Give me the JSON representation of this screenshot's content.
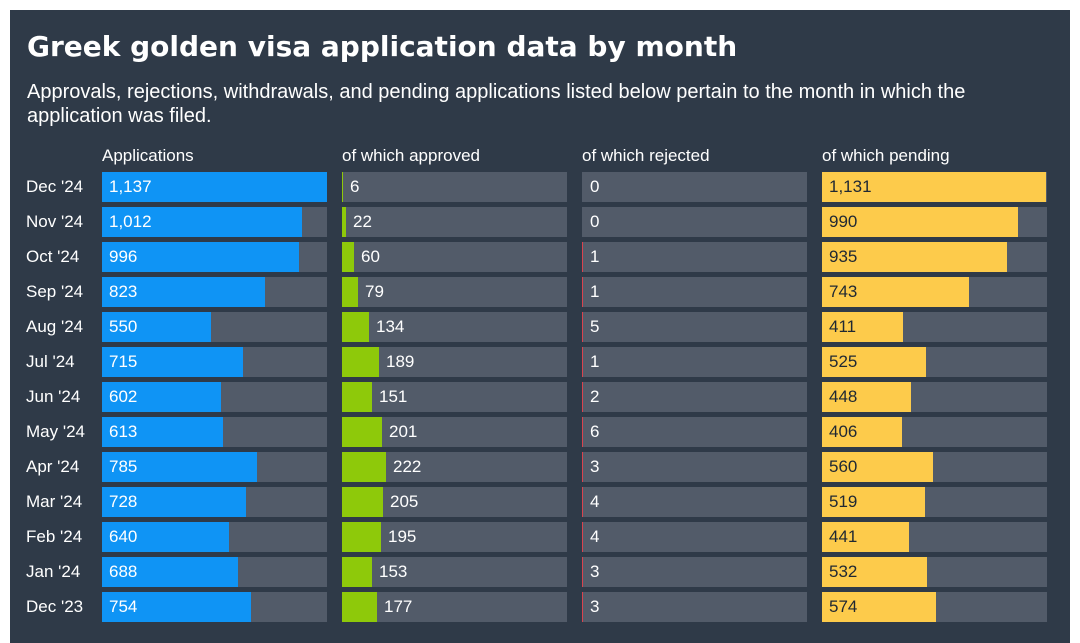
{
  "title": "Greek golden visa application data by month",
  "subtitle": "Approvals, rejections, withdrawals, and pending applications listed below pertain to the month in which the application was filed.",
  "columns": [
    {
      "key": "applications",
      "label": "Applications",
      "color": "#0f94f5",
      "max": 1137
    },
    {
      "key": "approved",
      "label": "of which approved",
      "color": "#8ec90a",
      "max": 1137
    },
    {
      "key": "rejected",
      "label": "of which rejected",
      "color": "#d8434f",
      "max": 1137
    },
    {
      "key": "pending",
      "label": "of which pending",
      "color": "#fdcb4b",
      "max": 1137
    }
  ],
  "chart_data": {
    "type": "bar",
    "orientation": "horizontal",
    "categories": [
      "Dec '24",
      "Nov '24",
      "Oct '24",
      "Sep '24",
      "Aug '24",
      "Jul '24",
      "Jun '24",
      "May '24",
      "Apr '24",
      "Mar '24",
      "Feb '24",
      "Jan '24",
      "Dec '23"
    ],
    "series": [
      {
        "name": "Applications",
        "values": [
          1137,
          1012,
          996,
          823,
          550,
          715,
          602,
          613,
          785,
          728,
          640,
          688,
          754
        ]
      },
      {
        "name": "of which approved",
        "values": [
          6,
          22,
          60,
          79,
          134,
          189,
          151,
          201,
          222,
          205,
          195,
          153,
          177
        ]
      },
      {
        "name": "of which rejected",
        "values": [
          0,
          0,
          1,
          1,
          5,
          1,
          2,
          6,
          3,
          4,
          4,
          3,
          3
        ]
      },
      {
        "name": "of which pending",
        "values": [
          1131,
          990,
          935,
          743,
          411,
          525,
          448,
          406,
          560,
          519,
          441,
          532,
          574
        ]
      }
    ]
  }
}
